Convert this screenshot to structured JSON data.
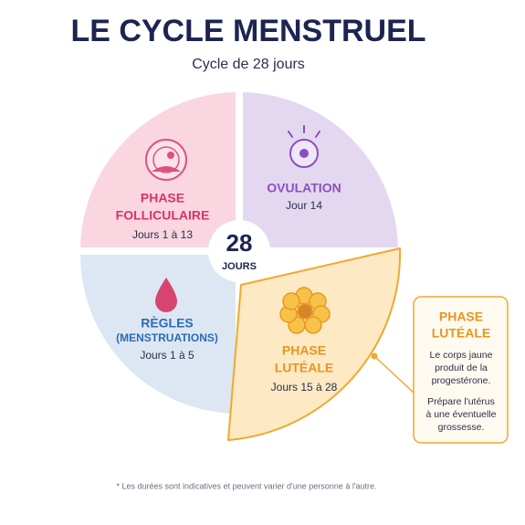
{
  "title": "LE CYCLE MENSTRUEL",
  "subtitle": "Cycle de 28 jours",
  "center": {
    "number": "28",
    "label": "JOURS"
  },
  "phases": [
    {
      "name": [
        "PHASE",
        "FOLLICULAIRE"
      ],
      "days": "Jours 1 à 13"
    },
    {
      "name": [
        "OVULATION"
      ],
      "days": "Jour 14"
    },
    {
      "name": [
        "RÈGLES",
        "(MENSTRUATIONS)"
      ],
      "days": "Jours 1 à 5"
    },
    {
      "name": [
        "PHASE",
        "LUTÉALE"
      ],
      "days": "Jours 15 à 28"
    }
  ],
  "callout": {
    "title": [
      "PHASE",
      "LUTÉALE"
    ],
    "paragraphs": [
      [
        "Le corps jaune",
        "produit de la",
        "progestérone."
      ],
      [
        "Prépare l'utérus",
        "à une éventuelle",
        "grossesse."
      ]
    ]
  },
  "footnote": "* Les durées sont indicatives et peuvent varier d'une personne à l'autre."
}
